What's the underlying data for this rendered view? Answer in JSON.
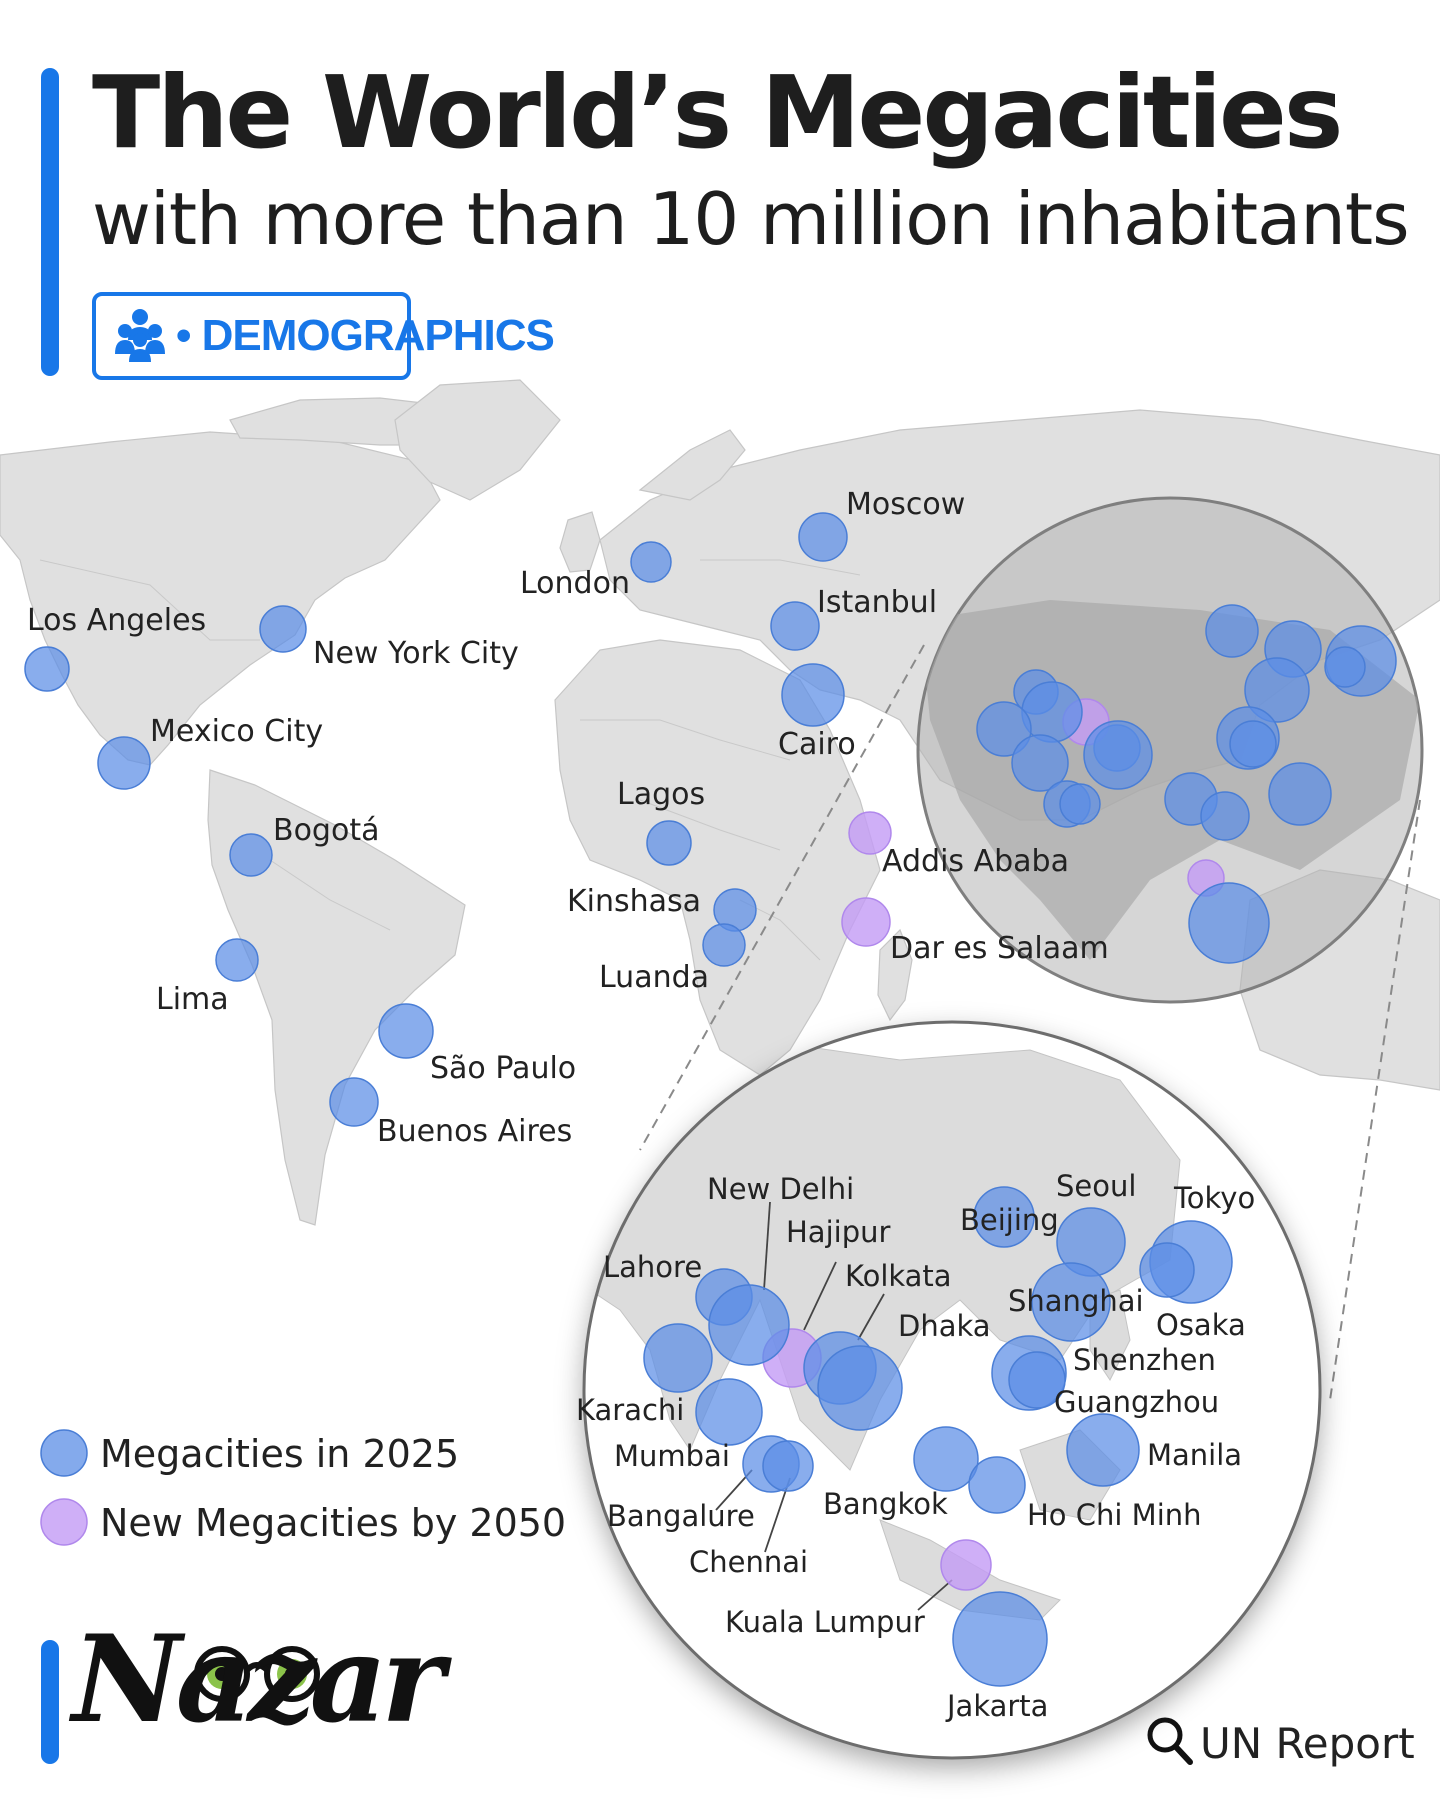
{
  "header": {
    "title": "The World’s Megacities",
    "subtitle": "with more than 10 million inhabitants",
    "badge": {
      "label": "• DEMOGRAPHICS",
      "icon": "people-group-icon"
    }
  },
  "colors": {
    "accent": "#1877e8",
    "megacity_2025": "#5b8ee6",
    "new_megacity_2050": "#c39bf5",
    "land": "#dedede",
    "lens_grey": "#9a9a9a"
  },
  "map": {
    "cities": [
      {
        "name": "Los Angeles",
        "type": "2025"
      },
      {
        "name": "New York City",
        "type": "2025"
      },
      {
        "name": "Mexico City",
        "type": "2025"
      },
      {
        "name": "Bogotá",
        "type": "2025"
      },
      {
        "name": "Lima",
        "type": "2025"
      },
      {
        "name": "São Paulo",
        "type": "2025"
      },
      {
        "name": "Buenos Aires",
        "type": "2025"
      },
      {
        "name": "London",
        "type": "2025"
      },
      {
        "name": "Moscow",
        "type": "2025"
      },
      {
        "name": "Istanbul",
        "type": "2025"
      },
      {
        "name": "Cairo",
        "type": "2025"
      },
      {
        "name": "Lagos",
        "type": "2025"
      },
      {
        "name": "Kinshasa",
        "type": "2025"
      },
      {
        "name": "Luanda",
        "type": "2025"
      },
      {
        "name": "Addis Ababa",
        "type": "2050"
      },
      {
        "name": "Dar es Salaam",
        "type": "2050"
      }
    ],
    "zoom_cities": [
      {
        "name": "New Delhi",
        "type": "2025"
      },
      {
        "name": "Hajipur",
        "type": "2050"
      },
      {
        "name": "Lahore",
        "type": "2025"
      },
      {
        "name": "Kolkata",
        "type": "2025"
      },
      {
        "name": "Dhaka",
        "type": "2025"
      },
      {
        "name": "Karachi",
        "type": "2025"
      },
      {
        "name": "Mumbai",
        "type": "2025"
      },
      {
        "name": "Bangalure",
        "type": "2025"
      },
      {
        "name": "Chennai",
        "type": "2025"
      },
      {
        "name": "Beijing",
        "type": "2025"
      },
      {
        "name": "Seoul",
        "type": "2025"
      },
      {
        "name": "Tokyo",
        "type": "2025"
      },
      {
        "name": "Osaka",
        "type": "2025"
      },
      {
        "name": "Shanghai",
        "type": "2025"
      },
      {
        "name": "Shenzhen",
        "type": "2025"
      },
      {
        "name": "Guangzhou",
        "type": "2025"
      },
      {
        "name": "Manila",
        "type": "2025"
      },
      {
        "name": "Bangkok",
        "type": "2025"
      },
      {
        "name": "Ho Chi Minh",
        "type": "2025"
      },
      {
        "name": "Kuala Lumpur",
        "type": "2050"
      },
      {
        "name": "Jakarta",
        "type": "2025"
      }
    ]
  },
  "legend": [
    {
      "label": "Megacities in 2025",
      "type": "2025"
    },
    {
      "label": "New Megacities by 2050",
      "type": "2050"
    }
  ],
  "footer": {
    "logo": "Nazar",
    "source": "UN Report",
    "source_icon": "search-icon"
  }
}
